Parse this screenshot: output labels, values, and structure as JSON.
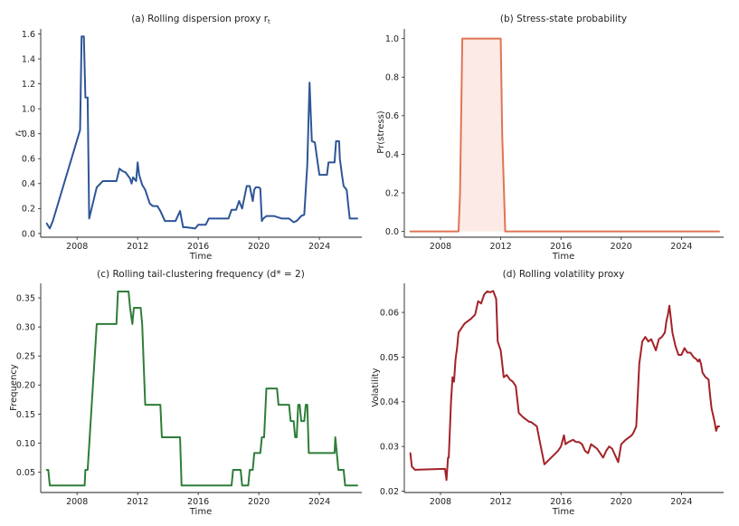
{
  "figure": {
    "layout": "2x2 grid",
    "background": "#ffffff"
  },
  "chart_data": [
    {
      "id": "a",
      "type": "line",
      "title": "(a) Rolling dispersion proxy r",
      "title_subscript": "t",
      "xlabel": "Time",
      "ylabel": "r",
      "ylabel_subscript": "t",
      "color": "#2e5597",
      "xlim": [
        2005.6,
        2026.8
      ],
      "ylim": [
        -0.03,
        1.64
      ],
      "xticks": [
        2008,
        2012,
        2016,
        2020,
        2024
      ],
      "yticks": [
        0.0,
        0.2,
        0.4,
        0.6,
        0.8,
        1.0,
        1.2,
        1.4,
        1.6
      ],
      "ytick_decimals": 1,
      "series": [
        {
          "name": "r_t",
          "x": [
            2006.0,
            2006.2,
            2006.4,
            2008.2,
            2008.3,
            2008.45,
            2008.55,
            2008.7,
            2008.8,
            2009.0,
            2009.3,
            2009.7,
            2010.0,
            2010.6,
            2010.8,
            2011.0,
            2011.2,
            2011.5,
            2011.6,
            2011.7,
            2011.9,
            2012.0,
            2012.1,
            2012.3,
            2012.5,
            2012.8,
            2013.0,
            2013.3,
            2013.5,
            2013.8,
            2014.5,
            2014.8,
            2015.0,
            2015.2,
            2015.8,
            2016.0,
            2016.5,
            2016.7,
            2017.0,
            2017.5,
            2018.0,
            2018.2,
            2018.5,
            2018.7,
            2018.9,
            2019.0,
            2019.2,
            2019.4,
            2019.6,
            2019.7,
            2019.8,
            2020.0,
            2020.1,
            2020.2,
            2020.3,
            2020.5,
            2021.0,
            2021.5,
            2022.0,
            2022.3,
            2022.5,
            2022.8,
            2023.0,
            2023.2,
            2023.35,
            2023.5,
            2023.7,
            2024.0,
            2024.5,
            2024.6,
            2025.0,
            2025.1,
            2025.3,
            2025.35,
            2025.5,
            2025.6,
            2025.8,
            2026.0,
            2026.5
          ],
          "values": [
            0.08,
            0.04,
            0.1,
            0.83,
            1.58,
            1.58,
            1.09,
            1.09,
            0.12,
            0.22,
            0.37,
            0.42,
            0.42,
            0.42,
            0.52,
            0.5,
            0.49,
            0.44,
            0.4,
            0.45,
            0.42,
            0.57,
            0.47,
            0.39,
            0.35,
            0.24,
            0.22,
            0.22,
            0.18,
            0.1,
            0.1,
            0.18,
            0.05,
            0.05,
            0.04,
            0.07,
            0.07,
            0.12,
            0.12,
            0.12,
            0.12,
            0.19,
            0.19,
            0.26,
            0.2,
            0.26,
            0.38,
            0.38,
            0.26,
            0.35,
            0.37,
            0.37,
            0.36,
            0.1,
            0.12,
            0.14,
            0.14,
            0.12,
            0.12,
            0.09,
            0.1,
            0.14,
            0.15,
            0.55,
            1.21,
            0.74,
            0.73,
            0.47,
            0.47,
            0.57,
            0.57,
            0.74,
            0.74,
            0.6,
            0.46,
            0.38,
            0.35,
            0.12,
            0.12
          ]
        }
      ]
    },
    {
      "id": "b",
      "type": "area",
      "title": "(b) Stress-state probability",
      "xlabel": "Time",
      "ylabel": "Pr(stress)",
      "color": "#e07555",
      "fill_color": "#fbeae5",
      "xlim": [
        2005.6,
        2026.8
      ],
      "ylim": [
        -0.03,
        1.05
      ],
      "xticks": [
        2008,
        2012,
        2016,
        2020,
        2024
      ],
      "yticks": [
        0.0,
        0.2,
        0.4,
        0.6,
        0.8,
        1.0
      ],
      "ytick_decimals": 1,
      "series": [
        {
          "name": "Pr(stress)",
          "x": [
            2006.0,
            2009.2,
            2009.3,
            2009.45,
            2012.0,
            2012.1,
            2012.3,
            2026.5
          ],
          "values": [
            0.0,
            0.0,
            0.2,
            1.0,
            1.0,
            0.5,
            0.0,
            0.0
          ]
        }
      ]
    },
    {
      "id": "c",
      "type": "line",
      "title": "(c) Rolling tail-clustering frequency (d* = 2)",
      "xlabel": "Time",
      "ylabel": "Frequency",
      "color": "#2f7d3a",
      "xlim": [
        2005.6,
        2026.8
      ],
      "ylim": [
        0.015,
        0.375
      ],
      "xticks": [
        2008,
        2012,
        2016,
        2020,
        2024
      ],
      "yticks": [
        0.05,
        0.1,
        0.15,
        0.2,
        0.25,
        0.3,
        0.35
      ],
      "ytick_decimals": 2,
      "series": [
        {
          "name": "frequency",
          "x": [
            2006.0,
            2006.1,
            2006.2,
            2008.5,
            2008.55,
            2008.7,
            2009.3,
            2009.4,
            2010.6,
            2010.7,
            2011.4,
            2011.5,
            2011.65,
            2011.75,
            2012.2,
            2012.3,
            2012.5,
            2013.5,
            2013.6,
            2014.8,
            2014.9,
            2018.2,
            2018.3,
            2018.8,
            2018.9,
            2019.3,
            2019.4,
            2019.6,
            2019.7,
            2020.1,
            2020.2,
            2020.35,
            2020.5,
            2021.2,
            2021.3,
            2022.0,
            2022.1,
            2022.3,
            2022.4,
            2022.5,
            2022.6,
            2022.7,
            2022.8,
            2023.0,
            2023.1,
            2023.2,
            2023.3,
            2025.0,
            2025.05,
            2025.15,
            2025.25,
            2025.6,
            2025.7,
            2026.5
          ],
          "values": [
            0.054,
            0.054,
            0.027,
            0.027,
            0.054,
            0.054,
            0.305,
            0.305,
            0.305,
            0.361,
            0.361,
            0.333,
            0.305,
            0.333,
            0.333,
            0.305,
            0.166,
            0.166,
            0.11,
            0.11,
            0.027,
            0.027,
            0.054,
            0.054,
            0.027,
            0.027,
            0.054,
            0.054,
            0.083,
            0.083,
            0.11,
            0.11,
            0.194,
            0.194,
            0.166,
            0.166,
            0.138,
            0.138,
            0.11,
            0.11,
            0.166,
            0.166,
            0.138,
            0.138,
            0.166,
            0.166,
            0.083,
            0.083,
            0.11,
            0.083,
            0.054,
            0.054,
            0.027,
            0.027
          ]
        }
      ]
    },
    {
      "id": "d",
      "type": "line",
      "title": "(d) Rolling volatility proxy",
      "xlabel": "Time",
      "ylabel": "Volatility",
      "color": "#a32228",
      "xlim": [
        2005.6,
        2026.8
      ],
      "ylim": [
        0.0197,
        0.0665
      ],
      "xticks": [
        2008,
        2012,
        2016,
        2020,
        2024
      ],
      "yticks": [
        0.02,
        0.03,
        0.04,
        0.05,
        0.06
      ],
      "ytick_decimals": 2,
      "series": [
        {
          "name": "volatility",
          "x": [
            2006.0,
            2006.1,
            2006.3,
            2008.3,
            2008.4,
            2008.5,
            2008.55,
            2008.7,
            2008.8,
            2008.9,
            2009.0,
            2009.1,
            2009.2,
            2009.4,
            2009.6,
            2009.8,
            2010.0,
            2010.3,
            2010.5,
            2010.7,
            2010.9,
            2011.1,
            2011.3,
            2011.5,
            2011.7,
            2011.8,
            2012.0,
            2012.2,
            2012.4,
            2012.6,
            2012.8,
            2013.0,
            2013.2,
            2013.5,
            2013.7,
            2013.9,
            2014.0,
            2014.2,
            2014.4,
            2014.6,
            2014.9,
            2015.2,
            2015.5,
            2015.8,
            2016.0,
            2016.2,
            2016.3,
            2016.5,
            2016.8,
            2017.0,
            2017.2,
            2017.4,
            2017.6,
            2017.8,
            2018.0,
            2018.2,
            2018.4,
            2018.6,
            2018.8,
            2019.0,
            2019.2,
            2019.4,
            2019.6,
            2019.8,
            2020.0,
            2020.3,
            2020.5,
            2020.7,
            2020.8,
            2021.0,
            2021.2,
            2021.4,
            2021.6,
            2021.8,
            2022.0,
            2022.3,
            2022.5,
            2022.7,
            2022.9,
            2023.0,
            2023.1,
            2023.2,
            2023.4,
            2023.6,
            2023.8,
            2024.0,
            2024.2,
            2024.4,
            2024.6,
            2024.8,
            2025.0,
            2025.1,
            2025.2,
            2025.3,
            2025.4,
            2025.6,
            2025.8,
            2025.9,
            2026.0,
            2026.2,
            2026.3,
            2026.4,
            2026.5
          ],
          "values": [
            0.0285,
            0.0255,
            0.0248,
            0.025,
            0.0225,
            0.0275,
            0.0275,
            0.04,
            0.0455,
            0.0445,
            0.0495,
            0.052,
            0.0555,
            0.0565,
            0.0575,
            0.058,
            0.0585,
            0.0595,
            0.0625,
            0.062,
            0.064,
            0.0647,
            0.0645,
            0.0648,
            0.063,
            0.0535,
            0.0515,
            0.0455,
            0.046,
            0.045,
            0.0445,
            0.0435,
            0.0375,
            0.0365,
            0.036,
            0.0355,
            0.0355,
            0.035,
            0.0345,
            0.031,
            0.026,
            0.027,
            0.028,
            0.029,
            0.03,
            0.0325,
            0.0305,
            0.031,
            0.0315,
            0.031,
            0.031,
            0.0305,
            0.029,
            0.0285,
            0.0305,
            0.03,
            0.0295,
            0.0285,
            0.0275,
            0.029,
            0.03,
            0.0295,
            0.028,
            0.0265,
            0.0305,
            0.0315,
            0.032,
            0.0325,
            0.033,
            0.0345,
            0.0485,
            0.0535,
            0.0545,
            0.0535,
            0.054,
            0.0515,
            0.054,
            0.0545,
            0.0555,
            0.058,
            0.0595,
            0.0615,
            0.0555,
            0.0525,
            0.0505,
            0.0505,
            0.052,
            0.051,
            0.051,
            0.05,
            0.0495,
            0.049,
            0.0495,
            0.0485,
            0.0465,
            0.0455,
            0.045,
            0.0415,
            0.0385,
            0.0355,
            0.0335,
            0.0345,
            0.0345
          ]
        }
      ]
    }
  ]
}
